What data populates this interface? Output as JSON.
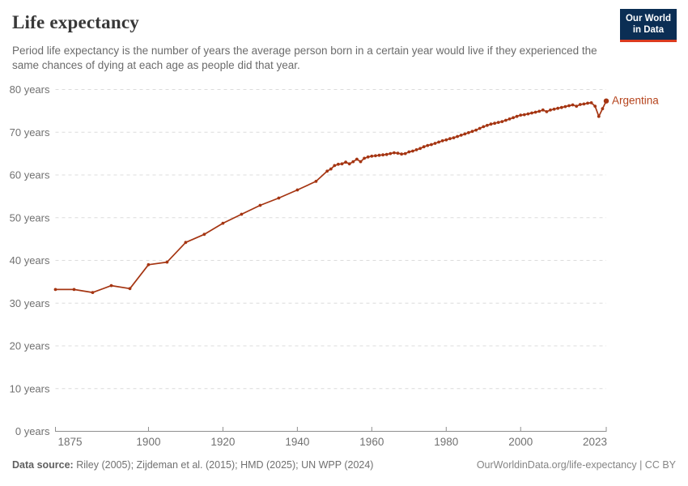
{
  "header": {
    "title": "Life expectancy",
    "subtitle": "Period life expectancy is the number of years the average person born in a certain year would live if they experienced the same chances of dying at each age as people did that year.",
    "logo": {
      "line1": "Our World",
      "line2": "in Data"
    }
  },
  "footer": {
    "source_label": "Data source:",
    "source_rest": " Riley (2005); Zijdeman et al. (2015); HMD (2025); UN WPP (2024)",
    "link_text": "OurWorldinData.org/life-expectancy | CC BY"
  },
  "colors": {
    "line": "#A53512",
    "series_label": "#B5431C",
    "grid": "#dcdcdc",
    "axis": "#8f8f8f",
    "tick_label": "#717171",
    "logo_bg": "#0b2e54",
    "logo_accent": "#dc3b1f"
  },
  "chart_data": {
    "type": "line",
    "title": "Life expectancy",
    "xlabel": "",
    "ylabel": "years",
    "xlim": [
      1875,
      2023
    ],
    "ylim": [
      0,
      80
    ],
    "grid": true,
    "legend_position": "end-of-line",
    "y_ticks": [
      {
        "value": 0,
        "label": "0 years"
      },
      {
        "value": 10,
        "label": "10 years"
      },
      {
        "value": 20,
        "label": "20 years"
      },
      {
        "value": 30,
        "label": "30 years"
      },
      {
        "value": 40,
        "label": "40 years"
      },
      {
        "value": 50,
        "label": "50 years"
      },
      {
        "value": 60,
        "label": "60 years"
      },
      {
        "value": 70,
        "label": "70 years"
      },
      {
        "value": 80,
        "label": "80 years"
      }
    ],
    "x_ticks": [
      {
        "value": 1875,
        "label": "1875",
        "align": "start"
      },
      {
        "value": 1900,
        "label": "1900",
        "align": "middle"
      },
      {
        "value": 1920,
        "label": "1920",
        "align": "middle"
      },
      {
        "value": 1940,
        "label": "1940",
        "align": "middle"
      },
      {
        "value": 1960,
        "label": "1960",
        "align": "middle"
      },
      {
        "value": 1980,
        "label": "1980",
        "align": "middle"
      },
      {
        "value": 2000,
        "label": "2000",
        "align": "middle"
      },
      {
        "value": 2023,
        "label": "2023",
        "align": "end"
      }
    ],
    "series": [
      {
        "name": "Argentina",
        "points": [
          [
            1875,
            33.2
          ],
          [
            1880,
            33.2
          ],
          [
            1885,
            32.5
          ],
          [
            1890,
            34.1
          ],
          [
            1895,
            33.4
          ],
          [
            1900,
            39.0
          ],
          [
            1905,
            39.6
          ],
          [
            1910,
            44.2
          ],
          [
            1915,
            46.1
          ],
          [
            1920,
            48.7
          ],
          [
            1925,
            50.8
          ],
          [
            1930,
            52.9
          ],
          [
            1935,
            54.6
          ],
          [
            1940,
            56.5
          ],
          [
            1945,
            58.5
          ],
          [
            1948,
            60.9
          ],
          [
            1949,
            61.4
          ],
          [
            1950,
            62.2
          ],
          [
            1951,
            62.5
          ],
          [
            1952,
            62.6
          ],
          [
            1953,
            63.0
          ],
          [
            1954,
            62.6
          ],
          [
            1955,
            63.1
          ],
          [
            1956,
            63.7
          ],
          [
            1957,
            63.1
          ],
          [
            1958,
            63.9
          ],
          [
            1959,
            64.2
          ],
          [
            1960,
            64.4
          ],
          [
            1961,
            64.5
          ],
          [
            1962,
            64.6
          ],
          [
            1963,
            64.7
          ],
          [
            1964,
            64.8
          ],
          [
            1965,
            65.0
          ],
          [
            1966,
            65.2
          ],
          [
            1967,
            65.1
          ],
          [
            1968,
            64.9
          ],
          [
            1969,
            65.0
          ],
          [
            1970,
            65.4
          ],
          [
            1971,
            65.6
          ],
          [
            1972,
            65.9
          ],
          [
            1973,
            66.2
          ],
          [
            1974,
            66.6
          ],
          [
            1975,
            66.9
          ],
          [
            1976,
            67.1
          ],
          [
            1977,
            67.4
          ],
          [
            1978,
            67.7
          ],
          [
            1979,
            68.0
          ],
          [
            1980,
            68.2
          ],
          [
            1981,
            68.5
          ],
          [
            1982,
            68.7
          ],
          [
            1983,
            69.0
          ],
          [
            1984,
            69.3
          ],
          [
            1985,
            69.6
          ],
          [
            1986,
            69.9
          ],
          [
            1987,
            70.2
          ],
          [
            1988,
            70.5
          ],
          [
            1989,
            70.9
          ],
          [
            1990,
            71.3
          ],
          [
            1991,
            71.6
          ],
          [
            1992,
            71.9
          ],
          [
            1993,
            72.1
          ],
          [
            1994,
            72.3
          ],
          [
            1995,
            72.5
          ],
          [
            1996,
            72.8
          ],
          [
            1997,
            73.1
          ],
          [
            1998,
            73.4
          ],
          [
            1999,
            73.7
          ],
          [
            2000,
            74.0
          ],
          [
            2001,
            74.1
          ],
          [
            2002,
            74.3
          ],
          [
            2003,
            74.5
          ],
          [
            2004,
            74.7
          ],
          [
            2005,
            74.9
          ],
          [
            2006,
            75.2
          ],
          [
            2007,
            74.8
          ],
          [
            2008,
            75.2
          ],
          [
            2009,
            75.4
          ],
          [
            2010,
            75.6
          ],
          [
            2011,
            75.8
          ],
          [
            2012,
            76.0
          ],
          [
            2013,
            76.2
          ],
          [
            2014,
            76.4
          ],
          [
            2015,
            76.1
          ],
          [
            2016,
            76.5
          ],
          [
            2017,
            76.6
          ],
          [
            2018,
            76.8
          ],
          [
            2019,
            76.9
          ],
          [
            2020,
            76.1
          ],
          [
            2021,
            73.7
          ],
          [
            2022,
            75.5
          ],
          [
            2023,
            77.3
          ]
        ]
      }
    ]
  }
}
